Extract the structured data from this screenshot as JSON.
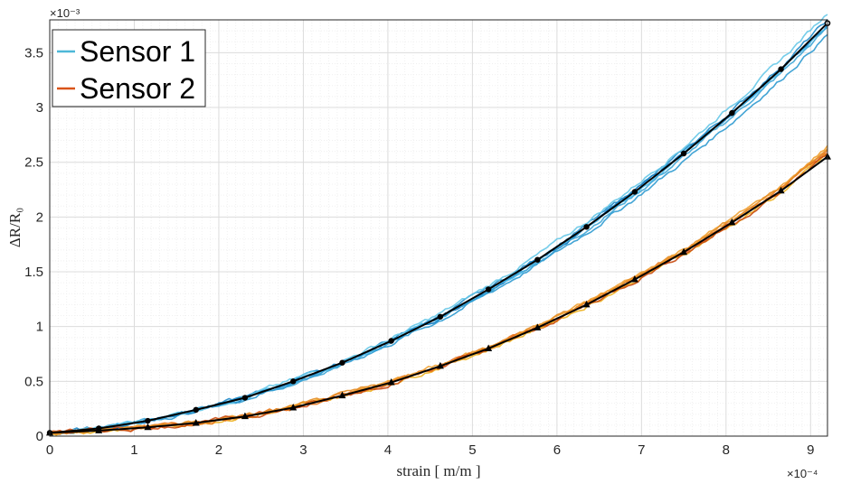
{
  "chart_data": {
    "type": "line",
    "xlabel": "strain [ m/m ]",
    "ylabel": "ΔR/R₀",
    "x_exponent_label": "×10⁻⁴",
    "y_exponent_label": "×10⁻³",
    "xlim": [
      0,
      9.2
    ],
    "ylim": [
      0,
      3.8
    ],
    "x_ticks": [
      "0",
      "1",
      "2",
      "3",
      "4",
      "5",
      "6",
      "7",
      "8",
      "9"
    ],
    "y_ticks": [
      "0",
      "0.5",
      "1",
      "1.5",
      "2",
      "2.5",
      "3",
      "3.5"
    ],
    "grid": true,
    "legend_position": "top-left",
    "series": [
      {
        "name": "Sensor 1",
        "color": "#4DB8D8",
        "marker": "circle",
        "x": [
          0,
          0.58,
          1.16,
          1.73,
          2.31,
          2.88,
          3.46,
          4.04,
          4.62,
          5.19,
          5.77,
          6.35,
          6.92,
          7.5,
          8.07,
          8.65,
          9.2
        ],
        "y": [
          0.03,
          0.07,
          0.14,
          0.24,
          0.35,
          0.5,
          0.67,
          0.87,
          1.09,
          1.34,
          1.61,
          1.91,
          2.23,
          2.58,
          2.95,
          3.35,
          3.77
        ]
      },
      {
        "name": "Sensor 2",
        "color": "#D95319",
        "marker": "triangle",
        "x": [
          0,
          0.58,
          1.16,
          1.73,
          2.31,
          2.88,
          3.46,
          4.04,
          4.62,
          5.19,
          5.77,
          6.35,
          6.92,
          7.5,
          8.07,
          8.65,
          9.2
        ],
        "y": [
          0.03,
          0.05,
          0.08,
          0.12,
          0.18,
          0.26,
          0.37,
          0.49,
          0.64,
          0.8,
          0.99,
          1.2,
          1.43,
          1.68,
          1.95,
          2.24,
          2.55
        ]
      }
    ]
  }
}
